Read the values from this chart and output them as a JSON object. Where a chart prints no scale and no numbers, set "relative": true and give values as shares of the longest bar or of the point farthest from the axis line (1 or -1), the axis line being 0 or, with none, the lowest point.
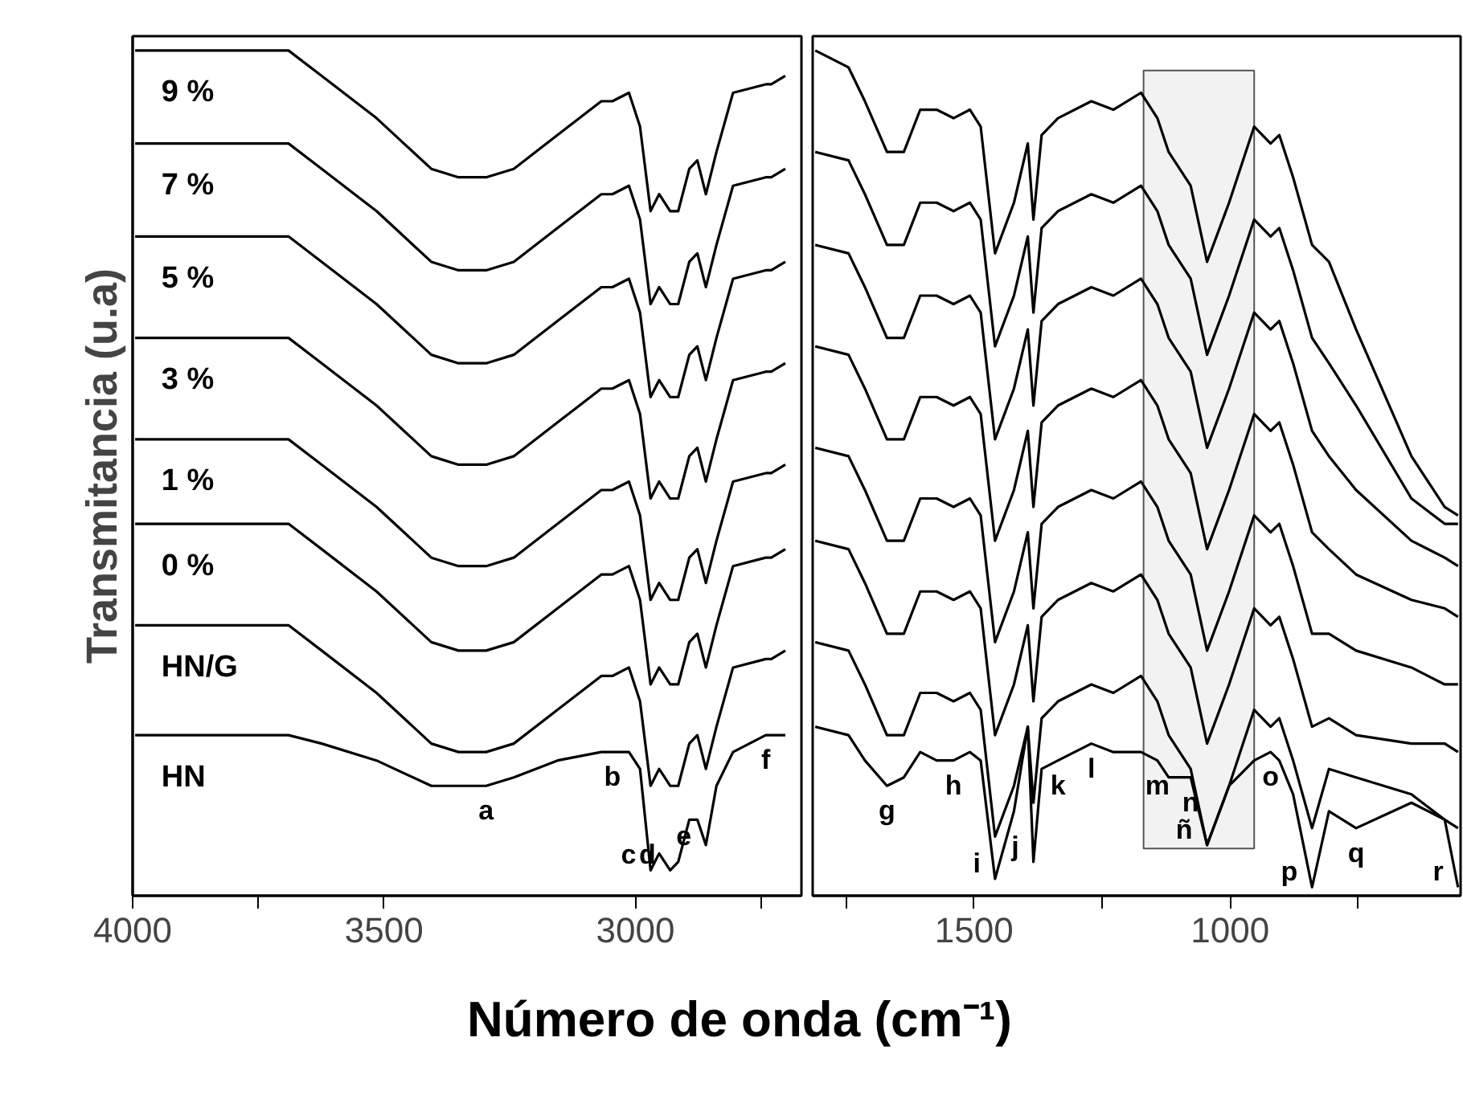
{
  "chart_data": [
    {
      "type": "line",
      "relative": true,
      "tick_labels": "x",
      "ylabel": "Transmitancia (u.a)",
      "xlabel": "Número de onda (cm⁻¹)",
      "xlim": [
        4000,
        2670
      ],
      "xticks": [
        4000,
        3500,
        3000,
        {
          "value": 3750,
          "label": null
        },
        {
          "value": 2750,
          "label": null
        }
      ],
      "x": [
        3995,
        3690,
        3624,
        3515,
        3406,
        3352,
        3297,
        3242,
        3155,
        3068,
        3046,
        3013,
        2991,
        2970,
        2953,
        2931,
        2915,
        2893,
        2877,
        2860,
        2839,
        2806,
        2741,
        2730,
        2702
      ],
      "series": [
        {
          "name": "9 %",
          "color": "#000000",
          "values": [
            1.0,
            1.0,
            0.97,
            0.92,
            0.86,
            0.85,
            0.85,
            0.86,
            0.9,
            0.94,
            0.94,
            0.95,
            0.91,
            0.81,
            0.83,
            0.81,
            0.81,
            0.86,
            0.87,
            0.83,
            0.88,
            0.95,
            0.96,
            0.96,
            0.97
          ]
        },
        {
          "name": "7 %",
          "color": "#000000",
          "values": [
            0.89,
            0.89,
            0.86,
            0.81,
            0.75,
            0.74,
            0.74,
            0.75,
            0.79,
            0.83,
            0.83,
            0.84,
            0.8,
            0.7,
            0.72,
            0.7,
            0.7,
            0.75,
            0.76,
            0.72,
            0.77,
            0.84,
            0.85,
            0.85,
            0.86
          ]
        },
        {
          "name": "5 %",
          "color": "#000000",
          "values": [
            0.78,
            0.78,
            0.75,
            0.7,
            0.64,
            0.63,
            0.63,
            0.64,
            0.68,
            0.72,
            0.72,
            0.73,
            0.69,
            0.59,
            0.61,
            0.59,
            0.59,
            0.64,
            0.65,
            0.61,
            0.66,
            0.73,
            0.74,
            0.74,
            0.75
          ]
        },
        {
          "name": "3 %",
          "color": "#000000",
          "values": [
            0.66,
            0.66,
            0.63,
            0.58,
            0.52,
            0.51,
            0.51,
            0.52,
            0.56,
            0.6,
            0.6,
            0.61,
            0.57,
            0.47,
            0.49,
            0.47,
            0.47,
            0.52,
            0.53,
            0.49,
            0.54,
            0.61,
            0.62,
            0.62,
            0.63
          ]
        },
        {
          "name": "1 %",
          "color": "#000000",
          "values": [
            0.54,
            0.54,
            0.51,
            0.46,
            0.4,
            0.39,
            0.39,
            0.4,
            0.44,
            0.48,
            0.48,
            0.49,
            0.45,
            0.35,
            0.37,
            0.35,
            0.35,
            0.4,
            0.41,
            0.37,
            0.42,
            0.49,
            0.5,
            0.5,
            0.51
          ]
        },
        {
          "name": "0 %",
          "color": "#000000",
          "values": [
            0.44,
            0.44,
            0.41,
            0.36,
            0.3,
            0.29,
            0.29,
            0.3,
            0.34,
            0.38,
            0.38,
            0.39,
            0.35,
            0.25,
            0.27,
            0.25,
            0.25,
            0.3,
            0.31,
            0.27,
            0.32,
            0.39,
            0.4,
            0.4,
            0.41
          ]
        },
        {
          "name": "HN/G",
          "color": "#000000",
          "values": [
            0.32,
            0.32,
            0.29,
            0.24,
            0.18,
            0.17,
            0.17,
            0.18,
            0.22,
            0.26,
            0.26,
            0.27,
            0.23,
            0.13,
            0.15,
            0.13,
            0.13,
            0.18,
            0.19,
            0.15,
            0.2,
            0.27,
            0.28,
            0.28,
            0.29
          ]
        },
        {
          "name": "HN",
          "color": "#000000",
          "values": [
            0.19,
            0.19,
            0.18,
            0.16,
            0.13,
            0.13,
            0.13,
            0.14,
            0.16,
            0.17,
            0.17,
            0.17,
            0.15,
            0.03,
            0.05,
            0.03,
            0.04,
            0.09,
            0.09,
            0.06,
            0.13,
            0.17,
            0.19,
            0.19,
            0.19
          ]
        }
      ],
      "annotations": [
        {
          "text": "a",
          "x": 3297,
          "y": 0.13
        },
        {
          "text": "b",
          "x": 3046,
          "y": 0.17
        },
        {
          "text": "c",
          "x": 2970,
          "y": 0.03
        },
        {
          "text": "d",
          "x": 2931,
          "y": 0.03
        },
        {
          "text": "e",
          "x": 2860,
          "y": 0.06
        },
        {
          "text": "f",
          "x": 2741,
          "y": 0.19
        }
      ]
    },
    {
      "type": "line",
      "relative": true,
      "tick_labels": "x",
      "xlim": [
        1815,
        550
      ],
      "xticks": [
        1500,
        1000,
        {
          "value": 1750,
          "label": null
        },
        {
          "value": 1250,
          "label": null
        },
        {
          "value": 750,
          "label": null
        }
      ],
      "x": [
        1810,
        1745,
        1713,
        1670,
        1637,
        1605,
        1573,
        1540,
        1508,
        1487,
        1459,
        1422,
        1395,
        1384,
        1368,
        1336,
        1271,
        1228,
        1174,
        1142,
        1120,
        1077,
        1045,
        1002,
        953,
        921,
        904,
        877,
        840,
        807,
        754,
        646,
        581,
        555
      ],
      "series": [
        {
          "color": "#000000",
          "values": [
            1.0,
            0.98,
            0.94,
            0.88,
            0.88,
            0.93,
            0.93,
            0.92,
            0.93,
            0.91,
            0.76,
            0.82,
            0.89,
            0.8,
            0.9,
            0.92,
            0.94,
            0.93,
            0.95,
            0.92,
            0.88,
            0.84,
            0.75,
            0.82,
            0.91,
            0.89,
            0.9,
            0.85,
            0.77,
            0.75,
            0.67,
            0.52,
            0.46,
            0.45
          ]
        },
        {
          "color": "#000000",
          "values": [
            0.88,
            0.87,
            0.83,
            0.77,
            0.77,
            0.82,
            0.82,
            0.81,
            0.82,
            0.8,
            0.65,
            0.71,
            0.78,
            0.69,
            0.79,
            0.81,
            0.83,
            0.82,
            0.84,
            0.81,
            0.77,
            0.73,
            0.64,
            0.71,
            0.8,
            0.78,
            0.79,
            0.74,
            0.66,
            0.63,
            0.58,
            0.47,
            0.44,
            0.44
          ]
        },
        {
          "color": "#000000",
          "values": [
            0.77,
            0.76,
            0.72,
            0.66,
            0.66,
            0.71,
            0.71,
            0.7,
            0.71,
            0.69,
            0.54,
            0.6,
            0.67,
            0.58,
            0.68,
            0.7,
            0.72,
            0.71,
            0.73,
            0.7,
            0.66,
            0.62,
            0.53,
            0.6,
            0.69,
            0.67,
            0.68,
            0.63,
            0.55,
            0.52,
            0.48,
            0.42,
            0.4,
            0.39
          ]
        },
        {
          "color": "#000000",
          "values": [
            0.65,
            0.64,
            0.6,
            0.54,
            0.54,
            0.59,
            0.59,
            0.58,
            0.59,
            0.57,
            0.42,
            0.48,
            0.55,
            0.46,
            0.56,
            0.58,
            0.6,
            0.59,
            0.61,
            0.58,
            0.54,
            0.5,
            0.41,
            0.48,
            0.57,
            0.55,
            0.56,
            0.51,
            0.43,
            0.41,
            0.38,
            0.35,
            0.34,
            0.33
          ]
        },
        {
          "color": "#000000",
          "values": [
            0.53,
            0.52,
            0.48,
            0.42,
            0.42,
            0.47,
            0.47,
            0.46,
            0.47,
            0.45,
            0.3,
            0.36,
            0.43,
            0.34,
            0.44,
            0.46,
            0.48,
            0.47,
            0.49,
            0.46,
            0.42,
            0.38,
            0.29,
            0.36,
            0.45,
            0.43,
            0.44,
            0.39,
            0.31,
            0.31,
            0.29,
            0.27,
            0.25,
            0.25
          ]
        },
        {
          "color": "#000000",
          "values": [
            0.42,
            0.41,
            0.37,
            0.31,
            0.31,
            0.36,
            0.36,
            0.35,
            0.36,
            0.34,
            0.19,
            0.25,
            0.32,
            0.23,
            0.33,
            0.35,
            0.37,
            0.36,
            0.38,
            0.35,
            0.31,
            0.27,
            0.18,
            0.25,
            0.34,
            0.32,
            0.33,
            0.28,
            0.2,
            0.21,
            0.19,
            0.18,
            0.18,
            0.17
          ]
        },
        {
          "color": "#000000",
          "values": [
            0.3,
            0.29,
            0.25,
            0.19,
            0.19,
            0.24,
            0.24,
            0.23,
            0.24,
            0.22,
            0.07,
            0.13,
            0.2,
            0.11,
            0.21,
            0.23,
            0.25,
            0.24,
            0.26,
            0.23,
            0.19,
            0.15,
            0.06,
            0.13,
            0.22,
            0.2,
            0.21,
            0.16,
            0.08,
            0.15,
            0.14,
            0.12,
            0.09,
            0.08
          ]
        },
        {
          "color": "#000000",
          "values": [
            0.2,
            0.19,
            0.16,
            0.13,
            0.14,
            0.17,
            0.16,
            0.16,
            0.17,
            0.16,
            0.02,
            0.1,
            0.2,
            0.04,
            0.15,
            0.16,
            0.18,
            0.17,
            0.17,
            0.16,
            0.14,
            0.14,
            0.06,
            0.13,
            0.16,
            0.17,
            0.16,
            0.12,
            0.01,
            0.1,
            0.08,
            0.11,
            0.09,
            0.01
          ]
        }
      ],
      "bands": [
        {
          "axis": "x",
          "from": 1169,
          "to": 953,
          "color": "#555555"
        }
      ],
      "annotations": [
        {
          "text": "g",
          "x": 1670,
          "y": 0.13
        },
        {
          "text": "h",
          "x": 1540,
          "y": 0.16
        },
        {
          "text": "i",
          "x": 1459,
          "y": 0.02
        },
        {
          "text": "j",
          "x": 1384,
          "y": 0.04
        },
        {
          "text": "k",
          "x": 1336,
          "y": 0.16
        },
        {
          "text": "l",
          "x": 1271,
          "y": 0.18
        },
        {
          "text": "m",
          "x": 1142,
          "y": 0.16
        },
        {
          "text": "n",
          "x": 1077,
          "y": 0.14
        },
        {
          "text": "ñ",
          "x": 1045,
          "y": 0.06
        },
        {
          "text": "o",
          "x": 921,
          "y": 0.17
        },
        {
          "text": "p",
          "x": 840,
          "y": 0.01
        },
        {
          "text": "q",
          "x": 754,
          "y": 0.08
        },
        {
          "text": "r",
          "x": 555,
          "y": 0.01
        }
      ]
    }
  ]
}
